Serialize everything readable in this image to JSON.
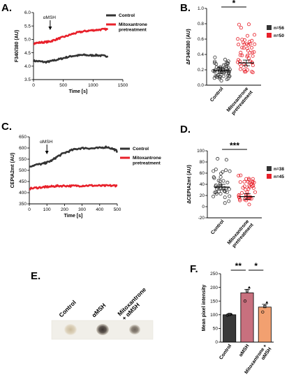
{
  "panels": {
    "A": {
      "label": "A.",
      "annotation": "αMSH",
      "chart_data": {
        "type": "line",
        "xlabel": "Time [s]",
        "ylabel": "F340/380 (AU)",
        "xlim": [
          0,
          1500
        ],
        "ylim": [
          3.5,
          6.0
        ],
        "xticks": [
          "0",
          "500",
          "1000",
          "1500"
        ],
        "yticks": [
          "3.5",
          "4.0",
          "4.5",
          "5.0",
          "5.5",
          "6.0"
        ],
        "stimulus_time": 280,
        "series": [
          {
            "name": "Control",
            "color": "#333333",
            "x": [
              0,
              100,
              200,
              280,
              350,
              450,
              550,
              650,
              750,
              850,
              950,
              1050,
              1150,
              1250
            ],
            "y": [
              4.2,
              4.18,
              4.15,
              4.18,
              4.22,
              4.27,
              4.33,
              4.38,
              4.4,
              4.42,
              4.4,
              4.41,
              4.39,
              4.37
            ]
          },
          {
            "name": "Mitoxantrone pretreatment",
            "color": "#e8202a",
            "x": [
              0,
              100,
              200,
              280,
              350,
              450,
              550,
              650,
              750,
              850,
              950,
              1050,
              1150,
              1250
            ],
            "y": [
              4.85,
              4.88,
              4.9,
              4.92,
              4.98,
              5.05,
              5.12,
              5.2,
              5.26,
              5.3,
              5.33,
              5.35,
              5.37,
              5.38
            ]
          }
        ]
      }
    },
    "B": {
      "label": "B.",
      "significance": "*",
      "chart_data": {
        "type": "scatter",
        "ylabel": "ΔF340/380 (AU)",
        "ylim": [
          0.0,
          1.0
        ],
        "yticks": [
          "0.0",
          "0.2",
          "0.4",
          "0.6",
          "0.8",
          "1.0"
        ],
        "categories": [
          "Control",
          "Mitoxantrone pretreatment"
        ],
        "legend": [
          "n=56",
          "n=50"
        ],
        "means": [
          0.19,
          0.29
        ],
        "colors": [
          "#333333",
          "#e8202a"
        ]
      }
    },
    "C": {
      "label": "C.",
      "annotation": "αMSH",
      "chart_data": {
        "type": "line",
        "xlabel": "Time [s]",
        "ylabel": "CEPIA2mt (AU)",
        "xlim": [
          0,
          500
        ],
        "ylim": [
          350,
          650
        ],
        "xticks": [
          "0",
          "100",
          "200",
          "300",
          "400",
          "500"
        ],
        "yticks": [
          "350",
          "400",
          "450",
          "500",
          "550",
          "600",
          "650"
        ],
        "stimulus_time": 100,
        "series": [
          {
            "name": "Control",
            "color": "#333333",
            "x": [
              0,
              40,
              80,
              100,
              130,
              160,
              200,
              240,
              280,
              320,
              360,
              400,
              440,
              480,
              500
            ],
            "y": [
              518,
              525,
              530,
              535,
              545,
              562,
              578,
              590,
              598,
              600,
              598,
              600,
              605,
              595,
              585
            ]
          },
          {
            "name": "Mitoxantrone pretreatment",
            "color": "#e8202a",
            "x": [
              0,
              40,
              80,
              100,
              130,
              160,
              200,
              240,
              280,
              320,
              360,
              400,
              440,
              480,
              500
            ],
            "y": [
              418,
              422,
              425,
              426,
              428,
              430,
              431,
              430,
              431,
              432,
              432,
              431,
              431,
              432,
              431
            ]
          }
        ]
      }
    },
    "D": {
      "label": "D.",
      "significance": "***",
      "chart_data": {
        "type": "scatter",
        "ylabel": "ΔCEPIA2mt (AU)",
        "ylim": [
          -20,
          100
        ],
        "yticks": [
          "-20",
          "0",
          "20",
          "40",
          "60",
          "80",
          "100"
        ],
        "categories": [
          "Control",
          "Mitoxantrone pretreatment"
        ],
        "legend": [
          "n=38",
          "n=45"
        ],
        "means": [
          35,
          18
        ],
        "colors": [
          "#333333",
          "#e8202a"
        ]
      }
    },
    "E": {
      "label": "E.",
      "columns": [
        "Control",
        "αMSH",
        "Mitoxantrone\n+ αMSH"
      ]
    },
    "F": {
      "label": "F.",
      "chart_data": {
        "type": "bar",
        "ylabel": "Mean pixel intensity",
        "ylim": [
          0,
          250
        ],
        "yticks": [
          "0",
          "50",
          "100",
          "150",
          "200",
          "250"
        ],
        "categories": [
          "Control",
          "αMSH",
          "Mitoxantrone +\nαMSH"
        ],
        "values": [
          100,
          180,
          128
        ],
        "errors": [
          3,
          12,
          10
        ],
        "colors": [
          "#3a3a3a",
          "#c8707e",
          "#f2a070"
        ],
        "points": [
          [
            98,
            101,
            102
          ],
          [
            150,
            188,
            200
          ],
          [
            110,
            130,
            145
          ]
        ],
        "significance": [
          {
            "from": 0,
            "to": 1,
            "label": "**"
          },
          {
            "from": 1,
            "to": 2,
            "label": "*"
          }
        ]
      }
    }
  }
}
